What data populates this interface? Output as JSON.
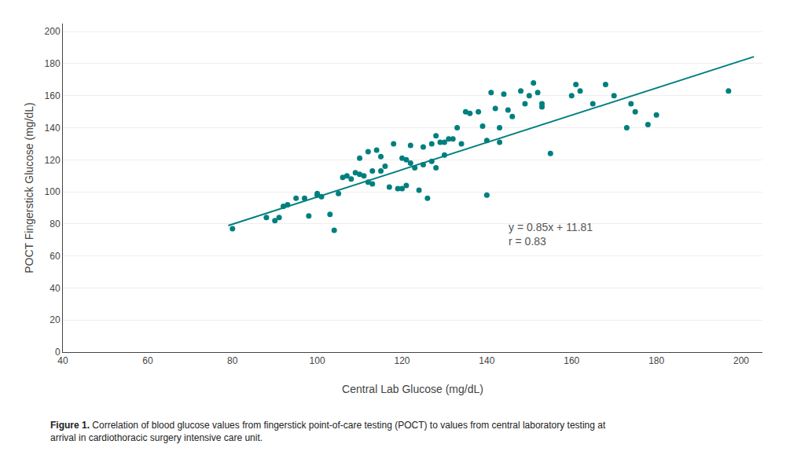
{
  "chart_data": {
    "type": "scatter",
    "xlabel": "Central Lab Glucose (mg/dL)",
    "ylabel": "POCT Fingerstick Glucose (mg/dL)",
    "annotations": [
      "y = 0.85x + 11.81",
      "r = 0.83"
    ],
    "caption": [
      "Figure 1.",
      "Correlation of blood glucose values from fingerstick point-of-care testing (POCT) to values from central laboratory testing at\narrival in cardiothoracic surgery intensive care unit."
    ],
    "series": [
      {
        "type": "scatter",
        "marker": "circle",
        "color": "#007f7f",
        "x": [
          80,
          88,
          90,
          91,
          92,
          93,
          95,
          97,
          98,
          100,
          100,
          101,
          103,
          104,
          105,
          106,
          107,
          108,
          109,
          110,
          110,
          111,
          112,
          112,
          113,
          113,
          114,
          115,
          115,
          116,
          117,
          118,
          119,
          120,
          120,
          121,
          121,
          122,
          122,
          123,
          124,
          125,
          125,
          126,
          127,
          127,
          128,
          128,
          129,
          130,
          130,
          131,
          132,
          133,
          134,
          135,
          136,
          138,
          139,
          140,
          140,
          141,
          142,
          143,
          143,
          144,
          145,
          146,
          148,
          149,
          150,
          151,
          152,
          153,
          153,
          155,
          160,
          161,
          162,
          165,
          168,
          170,
          173,
          174,
          175,
          178,
          180,
          197
        ],
        "values": [
          77,
          84,
          82,
          84,
          91,
          92,
          96,
          96,
          85,
          98,
          99,
          97,
          86,
          76,
          99,
          109,
          110,
          108,
          112,
          111,
          121,
          110,
          106,
          125,
          105,
          113,
          126,
          113,
          122,
          116,
          103,
          130,
          102,
          102,
          121,
          104,
          120,
          118,
          129,
          115,
          101,
          117,
          128,
          96,
          130,
          119,
          115,
          135,
          131,
          131,
          123,
          133,
          133,
          140,
          130,
          150,
          149,
          150,
          141,
          98,
          132,
          162,
          152,
          140,
          131,
          161,
          151,
          147,
          163,
          155,
          160,
          168,
          162,
          153,
          155,
          124,
          160,
          167,
          163,
          155,
          167,
          160,
          140,
          155,
          150,
          142,
          148,
          163
        ]
      },
      {
        "type": "line",
        "line_style": "solid",
        "color": "#007f7f",
        "x": [
          79,
          203
        ],
        "values": [
          78.96,
          184.36
        ]
      }
    ],
    "xlim": [
      40,
      205
    ],
    "ylim": [
      0,
      205
    ],
    "xticks": [
      40,
      60,
      80,
      100,
      120,
      140,
      160,
      180,
      200
    ],
    "yticks": [
      0,
      20,
      40,
      60,
      80,
      100,
      120,
      140,
      160,
      180,
      200
    ],
    "grid": "y"
  }
}
